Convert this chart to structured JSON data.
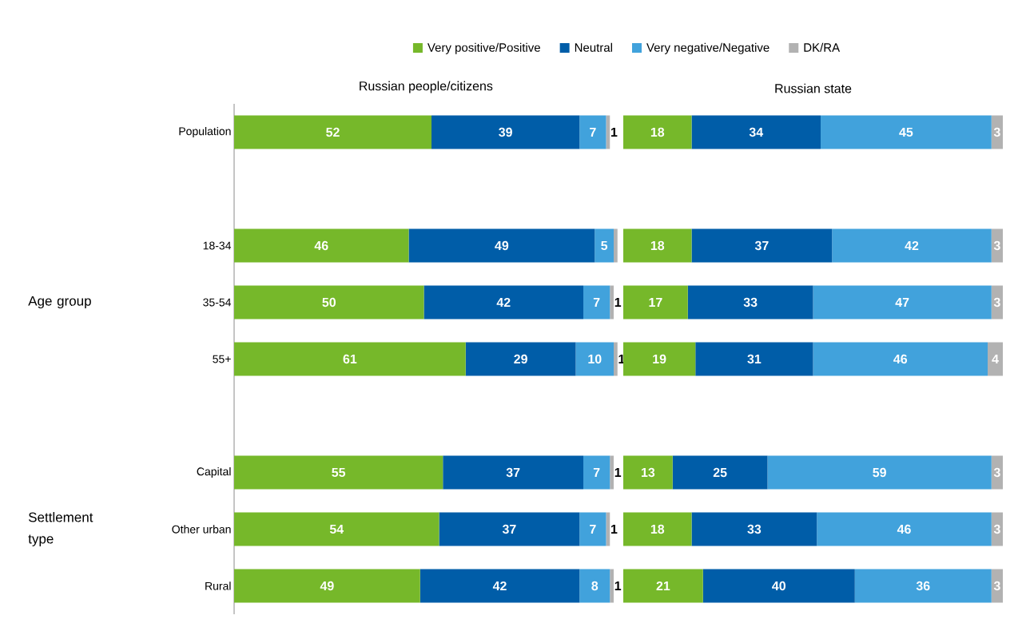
{
  "chart_data": [
    {
      "type": "bar",
      "orientation": "horizontal",
      "stacked": true,
      "title": "Russian people/citizens",
      "legend": "top",
      "categories": [
        "Population",
        null,
        "18-34",
        "35-54",
        "55+",
        null,
        "Capital",
        "Other urban",
        "Rural"
      ],
      "annotations": [
        "Age group",
        "Settlement type"
      ],
      "series": [
        {
          "name": "Very positive/Positive",
          "color": "#76b82a",
          "values": [
            52,
            null,
            46,
            50,
            61,
            null,
            55,
            54,
            49
          ],
          "value_labels": [
            "52",
            null,
            "46",
            "50",
            "61",
            null,
            "55",
            "54",
            "49"
          ]
        },
        {
          "name": "Neutral",
          "color": "#005da8",
          "values": [
            39,
            null,
            49,
            42,
            29,
            null,
            37,
            37,
            42
          ],
          "value_labels": [
            "39",
            null,
            "49",
            "42",
            "29",
            null,
            "37",
            "37",
            "42"
          ]
        },
        {
          "name": "Very negative/Negative",
          "color": "#41a2dc",
          "values": [
            7,
            null,
            5,
            7,
            10,
            null,
            7,
            7,
            8
          ],
          "value_labels": [
            "7",
            null,
            "5",
            "7",
            "10",
            null,
            "7",
            "7",
            "8"
          ]
        },
        {
          "name": "DK/RA",
          "color": "#b2b2b2",
          "values": [
            1,
            null,
            1,
            1,
            1,
            null,
            1,
            1,
            1
          ],
          "value_labels": [
            "1",
            null,
            null,
            "1",
            "1",
            null,
            "1",
            "1",
            "1"
          ]
        }
      ]
    },
    {
      "type": "bar",
      "orientation": "horizontal",
      "stacked": true,
      "title": "Russian state",
      "tick_labels": false,
      "categories": [
        null,
        null,
        null,
        null,
        null,
        null,
        null,
        null,
        null
      ],
      "series": [
        {
          "color": "#76b82a",
          "values": [
            18,
            null,
            18,
            17,
            19,
            null,
            13,
            18,
            21
          ],
          "value_labels": [
            "18",
            null,
            "18",
            "17",
            "19",
            null,
            "13",
            "18",
            "21"
          ]
        },
        {
          "color": "#005da8",
          "values": [
            34,
            null,
            37,
            33,
            31,
            null,
            25,
            33,
            40
          ],
          "value_labels": [
            "34",
            null,
            "37",
            "33",
            "31",
            null,
            "25",
            "33",
            "40"
          ]
        },
        {
          "color": "#41a2dc",
          "values": [
            45,
            null,
            42,
            47,
            46,
            null,
            59,
            46,
            36
          ],
          "value_labels": [
            "45",
            null,
            "42",
            "47",
            "46",
            null,
            "59",
            "46",
            "36"
          ]
        },
        {
          "color": "#b2b2b2",
          "values": [
            3,
            null,
            3,
            3,
            4,
            null,
            3,
            3,
            3
          ],
          "value_labels": [
            "3",
            null,
            "3",
            "3",
            "4",
            null,
            "3",
            "3",
            "3"
          ]
        }
      ]
    }
  ]
}
